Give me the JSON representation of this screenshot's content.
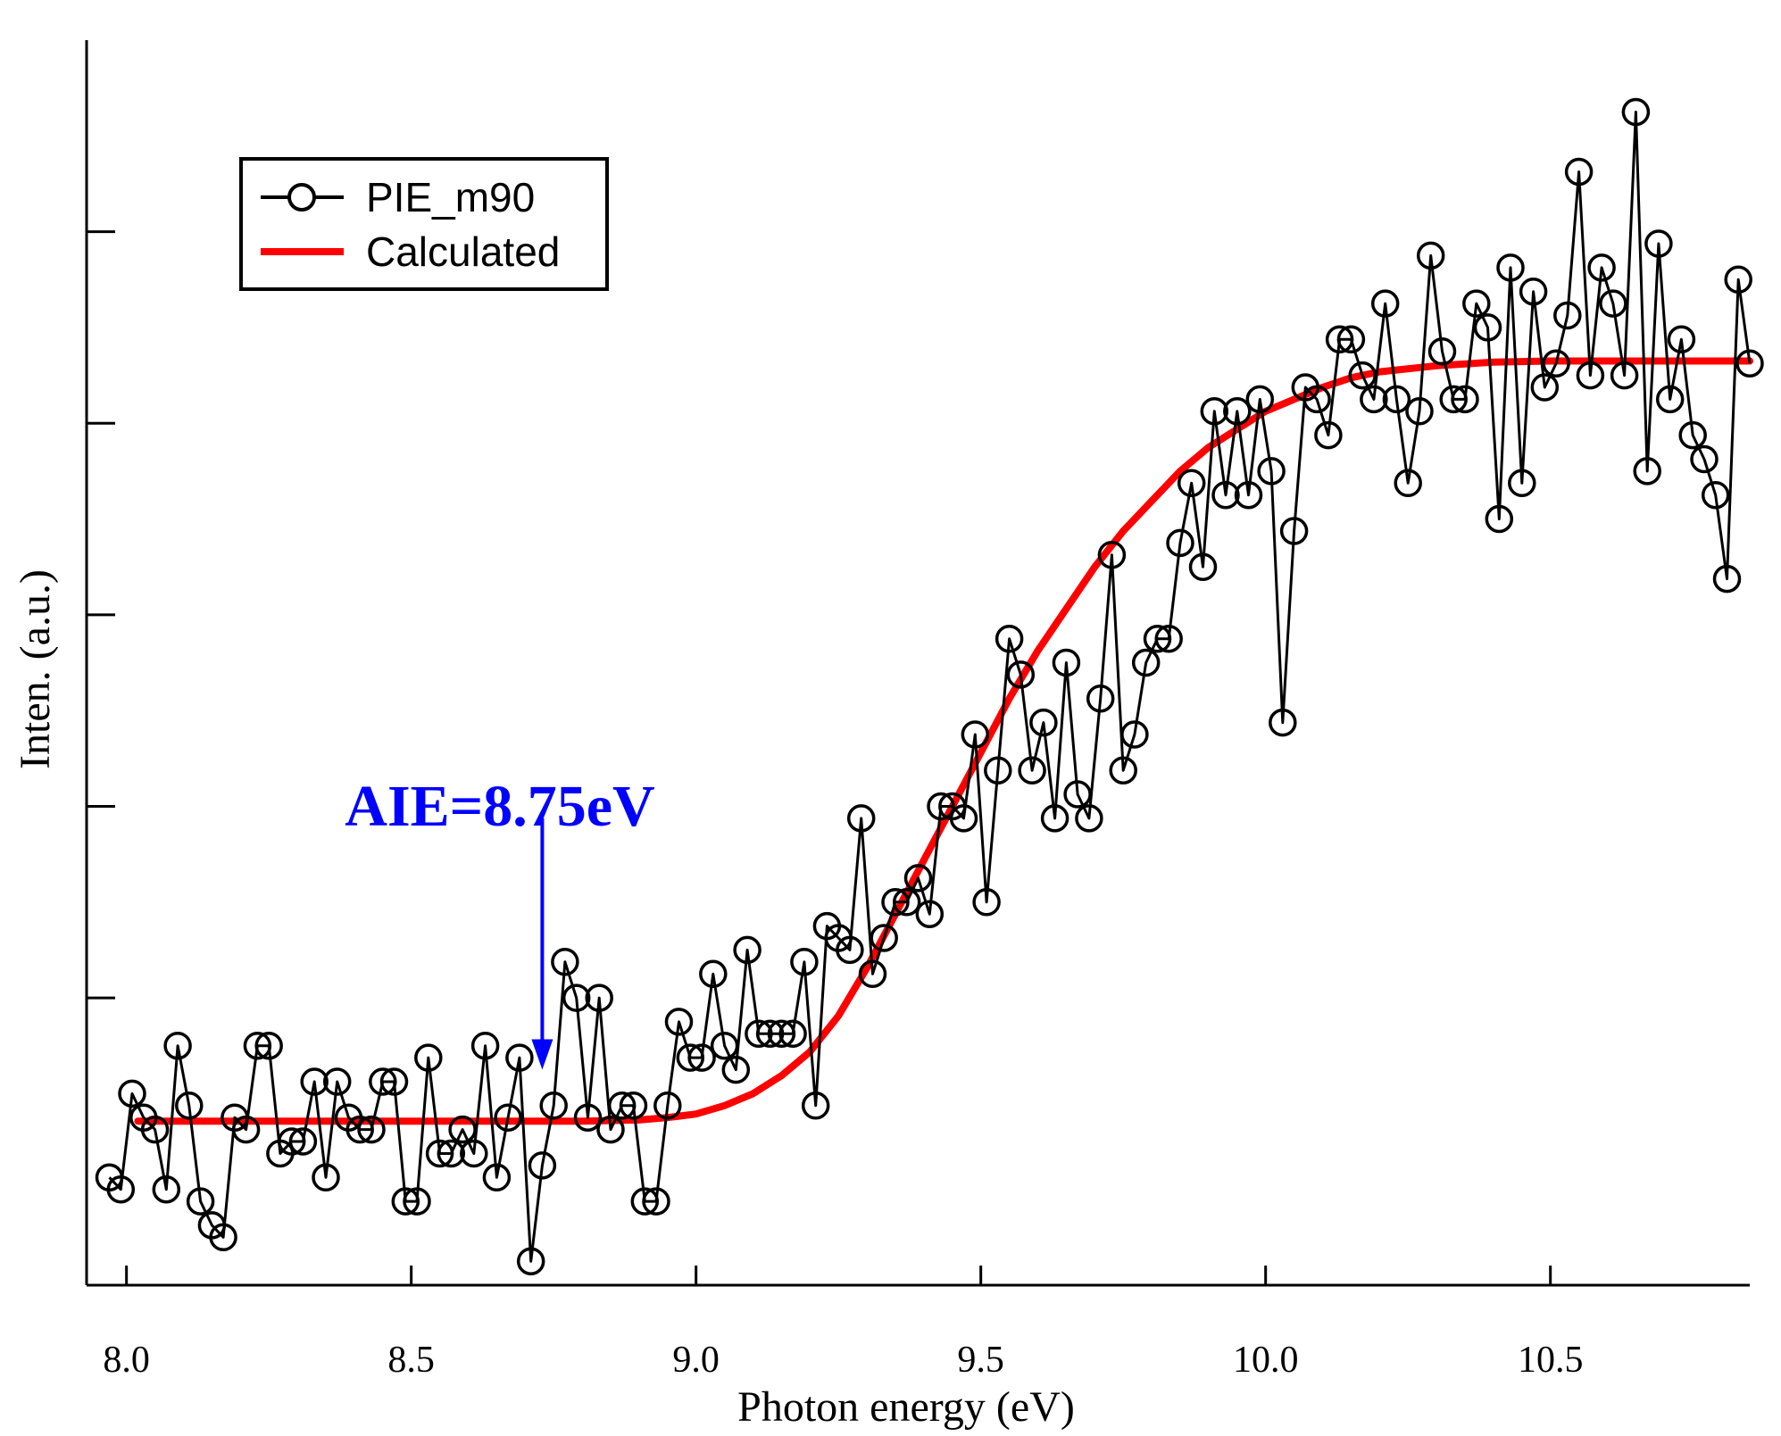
{
  "chart_data": {
    "type": "line",
    "xlabel": "Photon energy (eV)",
    "ylabel": "Inten. (a.u.)",
    "xlim": [
      7.93,
      10.85
    ],
    "ylim": [
      -0.04,
      1.0
    ],
    "x_ticks": [
      8.0,
      8.5,
      9.0,
      9.5,
      10.0,
      10.5
    ],
    "x_tick_labels": [
      "8.0",
      "8.5",
      "9.0",
      "9.5",
      "10.0",
      "10.5"
    ],
    "y_ticks": [
      0.2,
      0.36,
      0.52,
      0.68,
      0.84
    ],
    "y_tick_labels_shown": false,
    "grid": false,
    "legend_position": "top-left",
    "colors": {
      "data": "#000000",
      "calculated": "#ff0000",
      "annotation": "#0000ff"
    },
    "series": [
      {
        "name": "PIE_m90",
        "style": "line-with-open-circles",
        "points": [
          [
            7.97,
            0.05
          ],
          [
            7.99,
            0.04
          ],
          [
            8.01,
            0.12
          ],
          [
            8.03,
            0.1
          ],
          [
            8.05,
            0.09
          ],
          [
            8.07,
            0.04
          ],
          [
            8.09,
            0.16
          ],
          [
            8.11,
            0.11
          ],
          [
            8.13,
            0.03
          ],
          [
            8.15,
            0.01
          ],
          [
            8.17,
            0.0
          ],
          [
            8.19,
            0.1
          ],
          [
            8.21,
            0.09
          ],
          [
            8.23,
            0.16
          ],
          [
            8.25,
            0.16
          ],
          [
            8.27,
            0.07
          ],
          [
            8.29,
            0.08
          ],
          [
            8.31,
            0.08
          ],
          [
            8.33,
            0.13
          ],
          [
            8.35,
            0.05
          ],
          [
            8.37,
            0.13
          ],
          [
            8.39,
            0.1
          ],
          [
            8.41,
            0.09
          ],
          [
            8.43,
            0.09
          ],
          [
            8.45,
            0.13
          ],
          [
            8.47,
            0.13
          ],
          [
            8.49,
            0.03
          ],
          [
            8.51,
            0.03
          ],
          [
            8.53,
            0.15
          ],
          [
            8.55,
            0.07
          ],
          [
            8.57,
            0.07
          ],
          [
            8.59,
            0.09
          ],
          [
            8.61,
            0.07
          ],
          [
            8.63,
            0.16
          ],
          [
            8.65,
            0.05
          ],
          [
            8.67,
            0.1
          ],
          [
            8.69,
            0.15
          ],
          [
            8.71,
            -0.02
          ],
          [
            8.73,
            0.06
          ],
          [
            8.75,
            0.11
          ],
          [
            8.77,
            0.23
          ],
          [
            8.79,
            0.2
          ],
          [
            8.81,
            0.1
          ],
          [
            8.83,
            0.2
          ],
          [
            8.85,
            0.09
          ],
          [
            8.87,
            0.11
          ],
          [
            8.89,
            0.11
          ],
          [
            8.91,
            0.03
          ],
          [
            8.93,
            0.03
          ],
          [
            8.95,
            0.11
          ],
          [
            8.97,
            0.18
          ],
          [
            8.99,
            0.15
          ],
          [
            9.01,
            0.15
          ],
          [
            9.03,
            0.22
          ],
          [
            9.05,
            0.16
          ],
          [
            9.07,
            0.14
          ],
          [
            9.09,
            0.24
          ],
          [
            9.11,
            0.17
          ],
          [
            9.13,
            0.17
          ],
          [
            9.15,
            0.17
          ],
          [
            9.17,
            0.17
          ],
          [
            9.19,
            0.23
          ],
          [
            9.21,
            0.11
          ],
          [
            9.23,
            0.26
          ],
          [
            9.25,
            0.25
          ],
          [
            9.27,
            0.24
          ],
          [
            9.29,
            0.35
          ],
          [
            9.31,
            0.22
          ],
          [
            9.33,
            0.25
          ],
          [
            9.35,
            0.28
          ],
          [
            9.37,
            0.28
          ],
          [
            9.39,
            0.3
          ],
          [
            9.41,
            0.27
          ],
          [
            9.43,
            0.36
          ],
          [
            9.45,
            0.36
          ],
          [
            9.47,
            0.35
          ],
          [
            9.49,
            0.42
          ],
          [
            9.51,
            0.28
          ],
          [
            9.53,
            0.39
          ],
          [
            9.55,
            0.5
          ],
          [
            9.57,
            0.47
          ],
          [
            9.59,
            0.39
          ],
          [
            9.61,
            0.43
          ],
          [
            9.63,
            0.35
          ],
          [
            9.65,
            0.48
          ],
          [
            9.67,
            0.37
          ],
          [
            9.69,
            0.35
          ],
          [
            9.71,
            0.45
          ],
          [
            9.73,
            0.57
          ],
          [
            9.75,
            0.39
          ],
          [
            9.77,
            0.42
          ],
          [
            9.79,
            0.48
          ],
          [
            9.81,
            0.5
          ],
          [
            9.83,
            0.5
          ],
          [
            9.85,
            0.58
          ],
          [
            9.87,
            0.63
          ],
          [
            9.89,
            0.56
          ],
          [
            9.91,
            0.69
          ],
          [
            9.93,
            0.62
          ],
          [
            9.95,
            0.69
          ],
          [
            9.97,
            0.62
          ],
          [
            9.99,
            0.7
          ],
          [
            10.01,
            0.64
          ],
          [
            10.03,
            0.43
          ],
          [
            10.05,
            0.59
          ],
          [
            10.07,
            0.71
          ],
          [
            10.09,
            0.7
          ],
          [
            10.11,
            0.67
          ],
          [
            10.13,
            0.75
          ],
          [
            10.15,
            0.75
          ],
          [
            10.17,
            0.72
          ],
          [
            10.19,
            0.7
          ],
          [
            10.21,
            0.78
          ],
          [
            10.23,
            0.7
          ],
          [
            10.25,
            0.63
          ],
          [
            10.27,
            0.69
          ],
          [
            10.29,
            0.82
          ],
          [
            10.31,
            0.74
          ],
          [
            10.33,
            0.7
          ],
          [
            10.35,
            0.7
          ],
          [
            10.37,
            0.78
          ],
          [
            10.39,
            0.76
          ],
          [
            10.41,
            0.6
          ],
          [
            10.43,
            0.81
          ],
          [
            10.45,
            0.63
          ],
          [
            10.47,
            0.79
          ],
          [
            10.49,
            0.71
          ],
          [
            10.51,
            0.73
          ],
          [
            10.53,
            0.77
          ],
          [
            10.55,
            0.89
          ],
          [
            10.57,
            0.72
          ],
          [
            10.59,
            0.81
          ],
          [
            10.61,
            0.78
          ],
          [
            10.63,
            0.72
          ],
          [
            10.65,
            0.94
          ],
          [
            10.67,
            0.64
          ],
          [
            10.69,
            0.83
          ],
          [
            10.71,
            0.7
          ],
          [
            10.73,
            0.75
          ],
          [
            10.75,
            0.67
          ],
          [
            10.77,
            0.65
          ],
          [
            10.79,
            0.62
          ],
          [
            10.81,
            0.55
          ],
          [
            10.83,
            0.8
          ],
          [
            10.85,
            0.73
          ]
        ]
      },
      {
        "name": "Calculated",
        "style": "thick-line",
        "points": [
          [
            8.02,
            0.097
          ],
          [
            8.3,
            0.097
          ],
          [
            8.6,
            0.097
          ],
          [
            8.8,
            0.097
          ],
          [
            8.9,
            0.098
          ],
          [
            8.95,
            0.1
          ],
          [
            9.0,
            0.103
          ],
          [
            9.05,
            0.11
          ],
          [
            9.1,
            0.12
          ],
          [
            9.15,
            0.135
          ],
          [
            9.2,
            0.155
          ],
          [
            9.25,
            0.185
          ],
          [
            9.3,
            0.225
          ],
          [
            9.35,
            0.27
          ],
          [
            9.4,
            0.315
          ],
          [
            9.45,
            0.36
          ],
          [
            9.5,
            0.405
          ],
          [
            9.55,
            0.45
          ],
          [
            9.6,
            0.49
          ],
          [
            9.65,
            0.525
          ],
          [
            9.7,
            0.56
          ],
          [
            9.75,
            0.59
          ],
          [
            9.8,
            0.615
          ],
          [
            9.85,
            0.64
          ],
          [
            9.9,
            0.66
          ],
          [
            9.95,
            0.675
          ],
          [
            10.0,
            0.69
          ],
          [
            10.05,
            0.7
          ],
          [
            10.1,
            0.71
          ],
          [
            10.15,
            0.718
          ],
          [
            10.2,
            0.723
          ],
          [
            10.3,
            0.728
          ],
          [
            10.4,
            0.731
          ],
          [
            10.5,
            0.732
          ],
          [
            10.6,
            0.732
          ],
          [
            10.7,
            0.732
          ],
          [
            10.85,
            0.732
          ]
        ]
      }
    ],
    "annotations": [
      {
        "text": "AIE=8.75eV",
        "x": 8.73,
        "arrow_from_y": 0.35,
        "arrow_to_y": 0.14
      }
    ]
  }
}
